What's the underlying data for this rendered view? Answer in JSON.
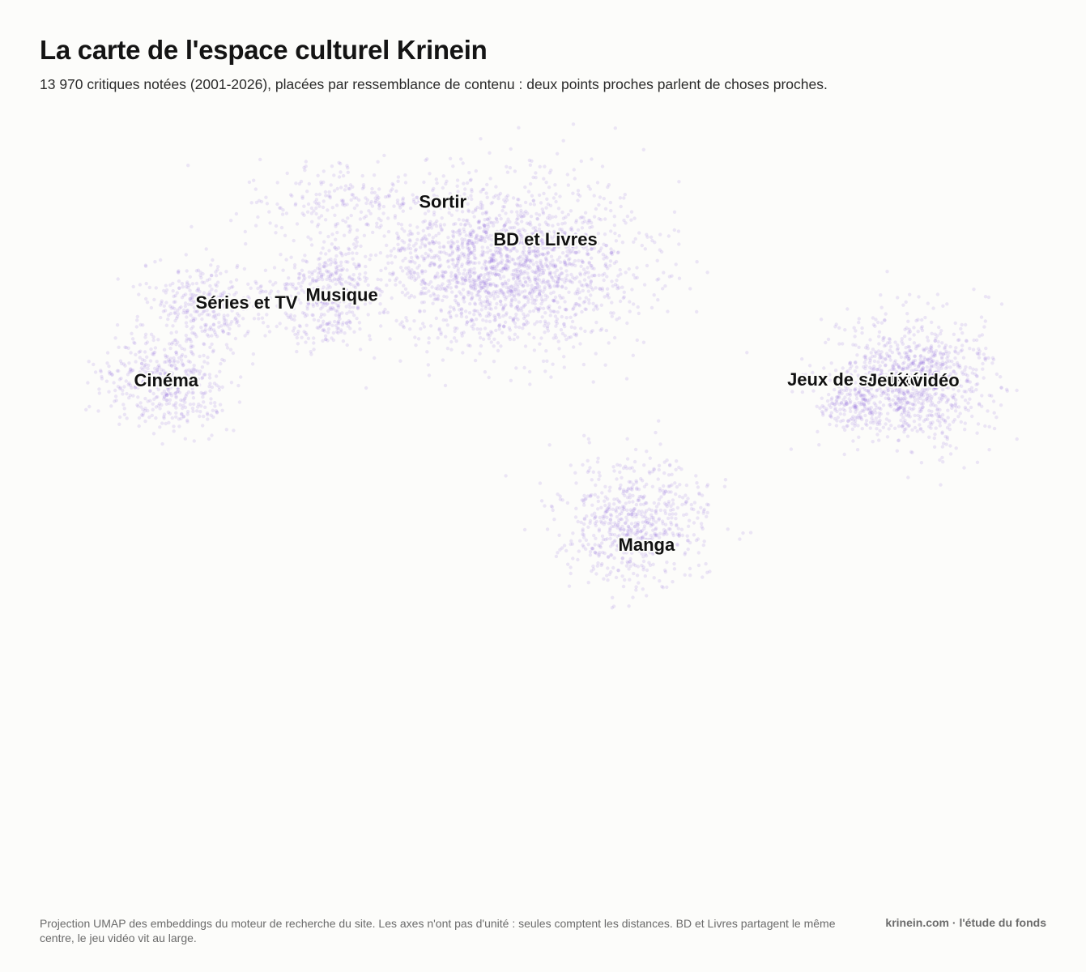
{
  "header": {
    "title": "La carte de l'espace culturel Krinein",
    "subtitle": "13 970 critiques notées (2001-2026), placées par ressemblance de contenu : deux points proches parlent de choses proches."
  },
  "footer": {
    "note": "Projection UMAP des embeddings du moteur de recherche du site. Les axes n'ont pas d'unité : seules comptent les distances. BD et Livres partagent le même centre, le jeu vidéo vit au large.",
    "credit": "krinein.com · l'étude du fonds"
  },
  "chart_data": {
    "type": "scatter",
    "title": "La carte de l'espace culturel Krinein",
    "subtitle": "13 970 critiques notées (2001-2026), placées par ressemblance de contenu : deux points proches parlent de choses proches.",
    "point_count": 13970,
    "axes": {
      "visible": false,
      "grid": false,
      "x_unit": "",
      "y_unit": ""
    },
    "legend": "none",
    "point_color": "#7c4ddb",
    "xlim": [
      0,
      100
    ],
    "ylim": [
      0,
      100
    ],
    "clusters": [
      {
        "name": "Cinéma",
        "x": 11,
        "y": 66,
        "share": 0.07
      },
      {
        "name": "Séries et TV",
        "x": 15,
        "y": 76,
        "share": 0.05
      },
      {
        "name": "Musique",
        "x": 27,
        "y": 77,
        "share": 0.06
      },
      {
        "name": "Sortir",
        "x": 29,
        "y": 89,
        "share": 0.03
      },
      {
        "name": "BD et Livres",
        "x": 45,
        "y": 81,
        "share": 0.3
      },
      {
        "name": "Manga",
        "x": 58,
        "y": 48,
        "share": 0.1
      },
      {
        "name": "Jeux de société",
        "x": 80,
        "y": 63,
        "share": 0.02
      },
      {
        "name": "Jeux vidéo",
        "x": 86,
        "y": 66,
        "share": 0.15
      }
    ]
  }
}
